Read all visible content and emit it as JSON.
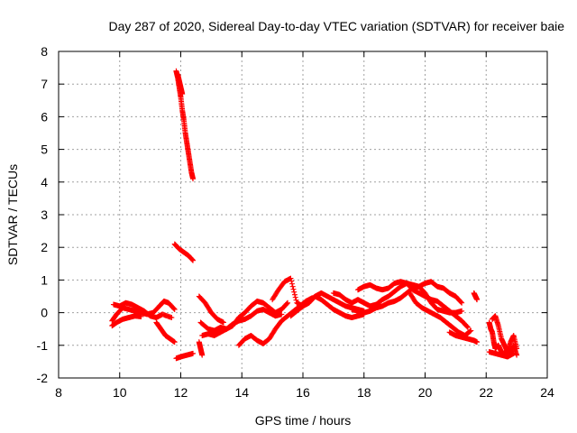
{
  "chart_data": {
    "type": "scatter",
    "title": "Day 287 of 2020, Sidereal Day-to-day VTEC variation (SDTVAR) for receiver baie",
    "xlabel": "GPS time / hours",
    "ylabel": "SDTVAR / TECUs",
    "xlim": [
      8,
      24
    ],
    "ylim": [
      -2,
      8
    ],
    "xticks": [
      8,
      10,
      12,
      14,
      16,
      18,
      20,
      22,
      24
    ],
    "yticks": [
      -2,
      -1,
      0,
      1,
      2,
      3,
      4,
      5,
      6,
      7,
      8
    ],
    "grid": true,
    "marker": "plus",
    "color": "#ff0000",
    "segments": [
      {
        "x": [
          9.75,
          9.9,
          10.1,
          10.3,
          10.5,
          10.7,
          10.9,
          11.1,
          11.3,
          11.45,
          11.6,
          11.8
        ],
        "y": [
          -0.25,
          -0.05,
          0.15,
          0.1,
          0.05,
          0.0,
          -0.05,
          0.0,
          0.2,
          0.35,
          0.3,
          0.1
        ]
      },
      {
        "x": [
          9.8,
          10.0,
          10.2,
          10.4,
          10.6,
          10.8,
          11.0,
          11.2,
          11.4,
          11.7
        ],
        "y": [
          0.25,
          0.2,
          0.3,
          0.25,
          0.15,
          0.05,
          -0.1,
          -0.15,
          -0.05,
          -0.15
        ]
      },
      {
        "x": [
          9.75,
          9.9,
          10.1,
          10.3,
          10.5,
          10.7
        ],
        "y": [
          -0.4,
          -0.3,
          -0.2,
          -0.15,
          -0.1,
          -0.12
        ]
      },
      {
        "x": [
          11.2,
          11.35,
          11.5,
          11.65,
          11.8
        ],
        "y": [
          -0.3,
          -0.5,
          -0.7,
          -0.8,
          -0.9
        ]
      },
      {
        "x": [
          11.85,
          11.9,
          11.95,
          12.0,
          12.05,
          12.1,
          12.15,
          12.2,
          12.25,
          12.3,
          12.35,
          12.4
        ],
        "y": [
          7.4,
          7.2,
          6.9,
          6.6,
          6.2,
          5.9,
          5.5,
          5.2,
          4.9,
          4.6,
          4.3,
          4.1
        ]
      },
      {
        "x": [
          11.9,
          11.95,
          12.0,
          12.05
        ],
        "y": [
          7.3,
          7.1,
          6.9,
          6.7
        ]
      },
      {
        "x": [
          11.8,
          11.95,
          12.1,
          12.25,
          12.4
        ],
        "y": [
          2.1,
          1.95,
          1.85,
          1.75,
          1.6
        ]
      },
      {
        "x": [
          11.85,
          12.0,
          12.2,
          12.4
        ],
        "y": [
          -1.4,
          -1.35,
          -1.3,
          -1.25
        ]
      },
      {
        "x": [
          12.6,
          12.65,
          12.7
        ],
        "y": [
          -0.9,
          -1.1,
          -1.3
        ]
      },
      {
        "x": [
          12.6,
          12.8,
          13.0,
          13.2,
          13.4
        ],
        "y": [
          0.5,
          0.3,
          0.0,
          -0.2,
          -0.3
        ]
      },
      {
        "x": [
          12.65,
          12.9,
          13.1,
          13.3,
          13.5,
          13.7,
          13.9,
          14.1,
          14.3,
          14.5,
          14.7,
          14.9,
          15.1,
          15.3,
          15.5
        ],
        "y": [
          -0.3,
          -0.5,
          -0.55,
          -0.45,
          -0.5,
          -0.4,
          -0.15,
          0.0,
          0.2,
          0.35,
          0.3,
          0.15,
          0.0,
          0.1,
          0.3
        ]
      },
      {
        "x": [
          12.7,
          12.9,
          13.1,
          13.3,
          13.5,
          13.7,
          13.9,
          14.1,
          14.3,
          14.5,
          14.7,
          14.9,
          15.1,
          15.3
        ],
        "y": [
          -0.7,
          -0.65,
          -0.7,
          -0.6,
          -0.5,
          -0.35,
          -0.25,
          -0.2,
          -0.1,
          0.05,
          0.1,
          0.0,
          -0.1,
          -0.05
        ]
      },
      {
        "x": [
          13.9,
          14.1,
          14.3,
          14.5,
          14.7,
          14.9,
          15.1,
          15.3,
          15.5,
          15.7,
          15.9,
          16.1,
          16.3
        ],
        "y": [
          -1.0,
          -0.8,
          -0.7,
          -0.85,
          -0.95,
          -0.8,
          -0.5,
          -0.25,
          -0.1,
          0.05,
          0.2,
          0.35,
          0.45
        ]
      },
      {
        "x": [
          15.0,
          15.2,
          15.4,
          15.6,
          15.8,
          16.0,
          16.2,
          16.4,
          16.6,
          16.8,
          17.0,
          17.2,
          17.4,
          17.6,
          17.8,
          18.0
        ],
        "y": [
          0.4,
          0.7,
          0.95,
          1.05,
          0.3,
          0.2,
          0.3,
          0.5,
          0.4,
          0.25,
          0.1,
          0.0,
          -0.1,
          -0.15,
          -0.1,
          -0.05
        ]
      },
      {
        "x": [
          15.6,
          15.8,
          16.0,
          16.2,
          16.4,
          16.6,
          16.8,
          17.0,
          17.2,
          17.4,
          17.6,
          17.8,
          18.0
        ],
        "y": [
          -0.1,
          0.05,
          0.2,
          0.35,
          0.5,
          0.6,
          0.5,
          0.4,
          0.3,
          0.2,
          0.15,
          0.1,
          0.05
        ]
      },
      {
        "x": [
          17.0,
          17.2,
          17.4,
          17.6,
          17.8,
          18.0,
          18.2,
          18.4,
          18.6,
          18.8,
          19.0,
          19.2,
          19.4,
          19.6,
          19.8,
          20.0,
          20.2,
          20.4,
          20.6,
          20.8,
          21.0,
          21.2
        ],
        "y": [
          0.6,
          0.55,
          0.4,
          0.3,
          0.4,
          0.3,
          0.2,
          0.25,
          0.4,
          0.5,
          0.65,
          0.8,
          0.9,
          0.85,
          0.8,
          0.9,
          0.95,
          0.8,
          0.75,
          0.6,
          0.5,
          0.3
        ]
      },
      {
        "x": [
          17.8,
          18.0,
          18.2,
          18.4,
          18.6,
          18.8,
          19.0,
          19.2,
          19.4,
          19.6,
          19.8,
          20.0,
          20.2,
          20.4,
          20.6,
          20.8,
          21.0,
          21.2,
          21.4
        ],
        "y": [
          0.7,
          0.8,
          0.85,
          0.75,
          0.7,
          0.75,
          0.9,
          0.95,
          0.9,
          0.7,
          0.6,
          0.5,
          0.4,
          0.35,
          0.2,
          0.05,
          -0.1,
          -0.25,
          -0.45
        ]
      },
      {
        "x": [
          17.6,
          17.8,
          18.0,
          18.2,
          18.4,
          18.6,
          18.8,
          19.0,
          19.2,
          19.4,
          19.6,
          19.8,
          20.0,
          20.2,
          20.4,
          20.6,
          20.8,
          21.0,
          21.2
        ],
        "y": [
          0.1,
          0.05,
          0.0,
          0.05,
          0.15,
          0.2,
          0.3,
          0.35,
          0.45,
          0.6,
          0.75,
          0.8,
          0.6,
          0.3,
          0.1,
          0.05,
          0.0,
          0.0,
          0.05
        ]
      },
      {
        "x": [
          19.5,
          19.7,
          19.9,
          20.1,
          20.3,
          20.5,
          20.7,
          20.9,
          21.1,
          21.3,
          21.5
        ],
        "y": [
          0.6,
          0.3,
          0.15,
          0.05,
          -0.05,
          -0.15,
          -0.3,
          -0.45,
          -0.6,
          -0.7,
          -0.55
        ]
      },
      {
        "x": [
          20.8,
          21.0,
          21.2,
          21.4,
          21.6,
          21.7
        ],
        "y": [
          -0.6,
          -0.7,
          -0.75,
          -0.8,
          -0.85,
          -0.9
        ]
      },
      {
        "x": [
          21.6,
          21.65,
          21.7
        ],
        "y": [
          0.6,
          0.5,
          0.4
        ]
      },
      {
        "x": [
          22.1,
          22.15,
          22.2,
          22.25,
          22.3,
          22.4,
          22.5,
          22.6,
          22.7,
          22.8,
          22.9,
          23.0
        ],
        "y": [
          -0.3,
          -0.5,
          -0.6,
          -0.9,
          -1.1,
          -1.0,
          -1.2,
          -1.3,
          -1.1,
          -1.25,
          -1.0,
          -1.3
        ]
      },
      {
        "x": [
          22.2,
          22.3,
          22.4,
          22.5,
          22.6,
          22.7,
          22.8,
          22.9,
          23.0
        ],
        "y": [
          -0.2,
          -0.1,
          -0.4,
          -0.8,
          -1.0,
          -1.2,
          -0.9,
          -0.7,
          -1.1
        ]
      },
      {
        "x": [
          22.1,
          22.3,
          22.5,
          22.7,
          22.9
        ],
        "y": [
          -1.2,
          -1.25,
          -1.3,
          -1.35,
          -1.25
        ]
      }
    ]
  }
}
